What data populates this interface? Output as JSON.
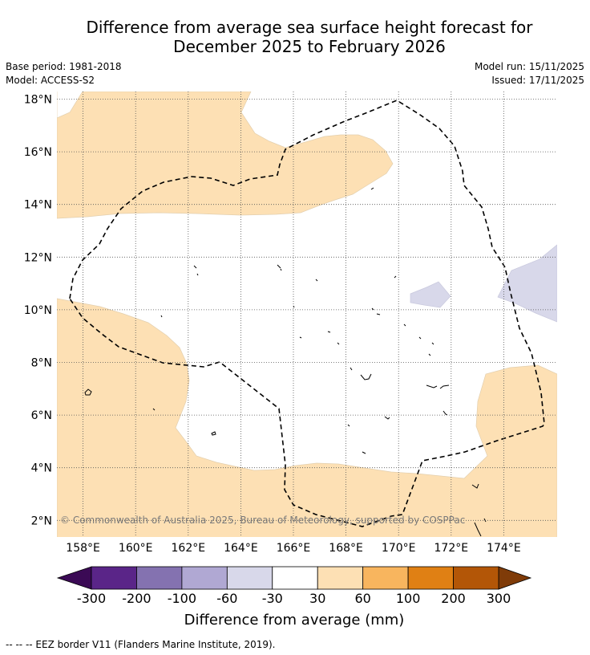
{
  "title_line1": "Difference from average sea surface height forecast for",
  "title_line2": "December 2025 to February 2026",
  "meta_left": [
    "Base period: 1981-2018",
    "Model: ACCESS-S2"
  ],
  "meta_right": [
    "Model run: 15/11/2025",
    "Issued: 17/11/2025"
  ],
  "map": {
    "lon_range": [
      157,
      176
    ],
    "lat_range": [
      1.4,
      18.3
    ],
    "lon_ticks": [
      158,
      160,
      162,
      164,
      166,
      168,
      170,
      172,
      174
    ],
    "lon_labels": [
      "158°E",
      "160°E",
      "162°E",
      "164°E",
      "166°E",
      "168°E",
      "170°E",
      "172°E",
      "174°E"
    ],
    "lat_ticks": [
      18,
      16,
      14,
      12,
      10,
      8,
      6,
      4,
      2
    ],
    "lat_labels": [
      "18°N",
      "16°N",
      "14°N",
      "12°N",
      "10°N",
      "8°N",
      "6°N",
      "4°N",
      "2°N"
    ],
    "copyright": "© Commonwealth of Australia 2025, Bureau of Meteorology, supported by COSPPac",
    "eez_line_color": "#000000"
  },
  "colorbar": {
    "title": "Difference from average (mm)",
    "labels": [
      "-300",
      "-200",
      "-100",
      "-60",
      "-30",
      "30",
      "60",
      "100",
      "200",
      "300"
    ],
    "colors": [
      "#5a2588",
      "#8472b0",
      "#b0a8d3",
      "#d8d8ea",
      "#ffffff",
      "#fde0b4",
      "#f8b55e",
      "#e08014",
      "#b35607"
    ],
    "under_color": "#3b0a55",
    "over_color": "#7f3b08"
  },
  "legend_note": "--  --  -- EEZ border V11 (Flanders Marine Institute, 2019)."
}
